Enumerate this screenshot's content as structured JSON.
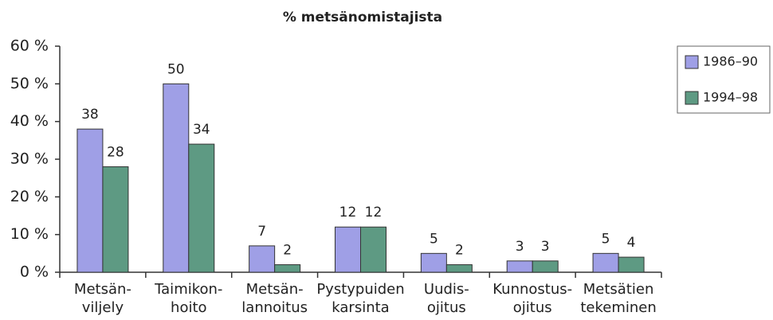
{
  "chart_data": {
    "type": "bar",
    "title": "% metsänomistajista",
    "categories": [
      [
        "Metsän-",
        "viljely"
      ],
      [
        "Taimikon-",
        "hoito"
      ],
      [
        "Metsän-",
        "lannoitus"
      ],
      [
        "Pystypuiden",
        "karsinta"
      ],
      [
        "Uudis-",
        "ojitus"
      ],
      [
        "Kunnostus-",
        "ojitus"
      ],
      [
        "Metsätien",
        "tekeminen"
      ]
    ],
    "series": [
      {
        "name": "1986–90",
        "color": "#9f9fe6",
        "values": [
          38,
          50,
          7,
          12,
          5,
          3,
          5
        ]
      },
      {
        "name": "1994–98",
        "color": "#5e9a83",
        "values": [
          28,
          34,
          2,
          12,
          2,
          3,
          4
        ]
      }
    ],
    "ylim": [
      0,
      60
    ],
    "yticks": [
      {
        "value": 0,
        "label": "0 %"
      },
      {
        "value": 10,
        "label": "10 %"
      },
      {
        "value": 20,
        "label": "20 %"
      },
      {
        "value": 30,
        "label": "30 %"
      },
      {
        "value": 40,
        "label": "40 %"
      },
      {
        "value": 50,
        "label": "50 %"
      },
      {
        "value": 60,
        "label": "60 %"
      }
    ],
    "legend": "right"
  }
}
